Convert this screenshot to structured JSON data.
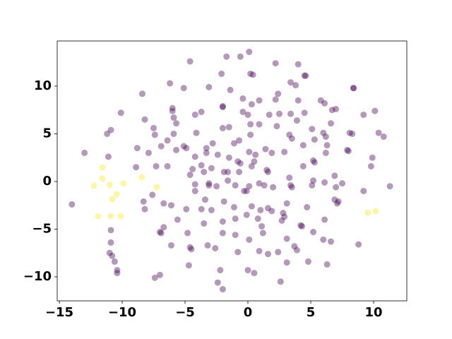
{
  "chart_data": {
    "type": "scatter",
    "xlim": [
      -15.17,
      12.64
    ],
    "ylim": [
      -12.52,
      14.74
    ],
    "xticks": [
      {
        "value": -15,
        "label": "−15"
      },
      {
        "value": -10,
        "label": "−10"
      },
      {
        "value": -5,
        "label": "−5"
      },
      0,
      5,
      10
    ],
    "yticks": [
      {
        "value": -10,
        "label": "−10"
      },
      {
        "value": -5,
        "label": "−5"
      },
      0,
      5,
      10
    ],
    "alpha": 0.4,
    "series": [
      {
        "color": "#440154",
        "x": [
          -14.0,
          -13.0,
          -11.2,
          -10.9,
          -10.1,
          -11.1,
          -8.9,
          -8.8,
          -8.4,
          -8.2,
          -8.3,
          -8.2,
          -7.9,
          -7.5,
          -7.4,
          -7.6,
          -7.3,
          -6.9,
          -6.7,
          -7.0,
          -6.9,
          -6.7,
          -7.0,
          -7.4,
          -10.9,
          -10.9,
          -11.0,
          -10.8,
          -10.6,
          -10.4,
          -10.4,
          -6.2,
          -6.0,
          -6.0,
          -5.9,
          -6.4,
          -6.4,
          -5.9,
          -6.1,
          -6.1,
          -5.6,
          -5.7,
          -5.7,
          -5.1,
          -5.1,
          -4.9,
          -4.9,
          -4.8,
          -4.7,
          -4.6,
          -4.5,
          -4.6,
          -4.2,
          -4.1,
          -4.2,
          -4.4,
          -4.6,
          -4.2,
          -4.2,
          -3.7,
          -3.7,
          -3.5,
          -3.7,
          -3.4,
          -3.3,
          -3.3,
          -3.5,
          -3.1,
          -2.9,
          -3.1,
          -3.1,
          -3.2,
          -2.8,
          -2.9,
          -2.5,
          -2.4,
          -2.0,
          -2.2,
          -2.4,
          -2.6,
          -2.0,
          -2.0,
          -2.0,
          -1.9,
          -1.9,
          -2.0,
          -2.0,
          -2.1,
          -1.7,
          -1.5,
          -1.5,
          -1.6,
          -1.6,
          -1.4,
          -1.1,
          -1.0,
          -1.1,
          -1.0,
          -1.0,
          -0.8,
          -0.7,
          -0.8,
          -0.6,
          -0.4,
          -0.4,
          -0.3,
          -0.1,
          -0.1,
          0.1,
          0.2,
          0.4,
          0.3,
          0.0,
          0.2,
          0.2,
          0.1,
          0.5,
          0.3,
          0.1,
          0.1,
          0.0,
          0.5,
          0.3,
          0.6,
          0.9,
          0.9,
          0.9,
          1.0,
          0.9,
          0.8,
          1.1,
          1.2,
          1.4,
          1.3,
          1.5,
          1.6,
          1.6,
          1.7,
          1.9,
          2.0,
          1.6,
          1.9,
          2.2,
          2.4,
          2.2,
          2.3,
          2.5,
          2.4,
          2.6,
          2.8,
          2.7,
          2.9,
          2.9,
          3.1,
          3.1,
          3.1,
          3.3,
          3.4,
          3.5,
          3.4,
          3.3,
          3.5,
          3.4,
          3.8,
          3.7,
          3.9,
          3.9,
          4.0,
          4.0,
          4.2,
          4.3,
          4.4,
          4.4,
          4.5,
          4.5,
          4.6,
          4.8,
          4.7,
          5.2,
          5.2,
          5.2,
          5.3,
          5.1,
          5.3,
          5.1,
          5.8,
          6.0,
          6.1,
          6.0,
          6.2,
          6.1,
          6.2,
          6.3,
          6.3,
          6.1,
          6.6,
          6.6,
          6.7,
          7.0,
          7.0,
          6.9,
          6.9,
          7.1,
          7.2,
          7.5,
          8.0,
          7.9,
          8.1,
          8.3,
          8.4,
          8.4,
          8.8,
          9.2,
          9.2,
          9.8,
          9.9,
          10.1,
          10.4,
          10.8,
          11.3,
          -0.7,
          -0.6
        ],
        "y": [
          -2.4,
          3.0,
          5.0,
          5.4,
          7.2,
          2.6,
          1.5,
          3.5,
          9.2,
          6.5,
          -2.1,
          -2.9,
          3.0,
          5.6,
          4.9,
          -1.4,
          1.6,
          3.7,
          -2.3,
          -5.3,
          -5.4,
          -4.8,
          -9.8,
          -10.1,
          -5.1,
          -6.4,
          -7.5,
          -7.8,
          -8.4,
          -9.3,
          -9.6,
          10.3,
          7.7,
          7.4,
          6.7,
          4.3,
          1.6,
          5.0,
          -2.5,
          -6.7,
          -4.0,
          6.1,
          3.3,
          9.8,
          3.7,
          3.5,
          -2.9,
          -5.4,
          -8.8,
          -6.9,
          -7.1,
          12.6,
          7.0,
          5.1,
          2.6,
          1.3,
          0.7,
          -0.3,
          -1.0,
          7.3,
          1.7,
          1.0,
          -2.9,
          -1.9,
          3.5,
          3.0,
          -4.4,
          9.9,
          1.4,
          -0.4,
          -0.2,
          -6.7,
          4.0,
          -3.0,
          -0.5,
          -10.6,
          -11.3,
          -9.3,
          2.8,
          -7.0,
          7.9,
          7.8,
          5.6,
          1.0,
          -2.1,
          -4.2,
          -5.4,
          11.3,
          13.1,
          2.5,
          5.7,
          0.1,
          1.0,
          9.6,
          4.0,
          -0.4,
          -2.7,
          -3.9,
          -5.6,
          -7.4,
          1.0,
          2.1,
          13.1,
          8.7,
          7.3,
          -1.0,
          -1.0,
          -3.5,
          13.6,
          11.3,
          11.2,
          8.1,
          7.0,
          6.0,
          4.9,
          3.1,
          2.1,
          1.6,
          -0.5,
          -6.1,
          -9.3,
          -9.6,
          -2.6,
          2.8,
          8.5,
          6.0,
          -0.2,
          -3.0,
          -7.3,
          -3.9,
          -4.7,
          -5.4,
          3.4,
          -0.4,
          1.2,
          -7.6,
          1.0,
          7.0,
          3.0,
          -0.6,
          -2.8,
          -3.1,
          12.4,
          9.2,
          8.6,
          5.8,
          7.1,
          -7.4,
          -10.5,
          -3.3,
          -4.1,
          -3.7,
          3.1,
          -8.5,
          -6.0,
          -2.3,
          0.4,
          -0.4,
          -0.6,
          10.4,
          4.9,
          4.5,
          7.1,
          10.1,
          -6.8,
          -7.2,
          6.4,
          12.3,
          8.5,
          -4.6,
          -4.7,
          1.6,
          3.8,
          11.1,
          7.2,
          11.1,
          -8.4,
          -2.7,
          2.2,
          -5.3,
          0.1,
          2.0,
          -0.4,
          4.4,
          5.5,
          8.5,
          -6.1,
          -4.0,
          5.1,
          3.0,
          8.2,
          4.7,
          3.8,
          -8.7,
          -0.1,
          -6.3,
          6.1,
          7.5,
          7.6,
          -0.6,
          -1.9,
          0.6,
          -2.3,
          -2.1,
          -0.2,
          3.2,
          3.3,
          5.1,
          5.0,
          9.8,
          9.8,
          -6.6,
          7.0,
          -1.0,
          1.6,
          2.5,
          7.4,
          5.1,
          4.7,
          -0.5,
          4.3,
          1.9
        ]
      },
      {
        "color": "#fde725",
        "x": [
          -11.57,
          -11.57,
          -12.25,
          -11.0,
          -9.89,
          -10.45,
          -10.79,
          -11.91,
          -10.9,
          -10.11,
          -8.43,
          -7.25,
          9.55,
          10.17
        ],
        "y": [
          1.48,
          0.3,
          -0.44,
          -0.37,
          -0.22,
          -1.33,
          -1.85,
          -3.63,
          -3.63,
          -3.63,
          0.44,
          -0.59,
          -3.26,
          -3.11
        ]
      }
    ]
  }
}
